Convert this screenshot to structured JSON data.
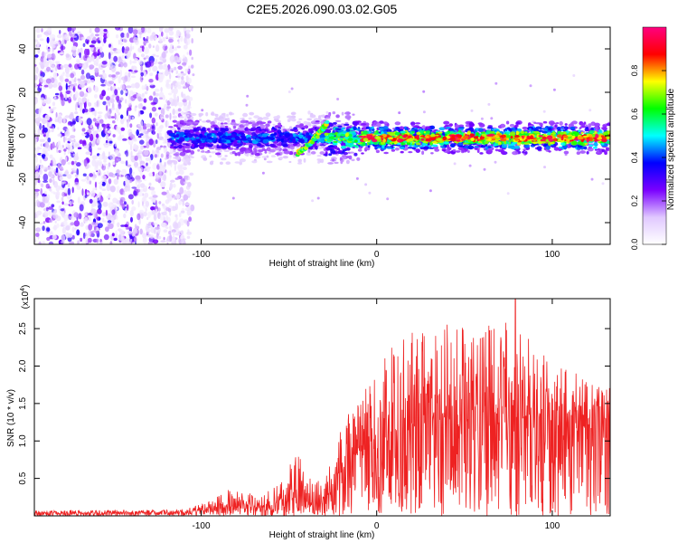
{
  "figure_title": "C2E5.2026.090.03.02.G05",
  "chart_data": [
    {
      "type": "heatmap",
      "title": "C2E5.2026.090.03.02.G05",
      "xlabel": "Height of straight line (km)",
      "ylabel": "Frequency (Hz)",
      "xlim": [
        -195,
        133
      ],
      "ylim": [
        -50,
        50
      ],
      "x_ticks": [
        -100,
        0,
        100
      ],
      "x_tick_labels": [
        "-100",
        "0",
        "100"
      ],
      "y_ticks": [
        -40,
        -20,
        0,
        20,
        40
      ],
      "y_tick_labels": [
        "-40",
        "-20",
        "0",
        "20",
        "40"
      ],
      "colorbar": {
        "label": "Normalized spectral amplitude",
        "range": [
          0,
          1
        ],
        "ticks": [
          0.0,
          0.2,
          0.4,
          0.6,
          0.8
        ],
        "tick_labels": [
          "0.0",
          "0.2",
          "0.4",
          "0.6",
          "0.8"
        ],
        "colors": [
          "#ffffff",
          "#e0c8ff",
          "#7a00ff",
          "#0000ff",
          "#00ffff",
          "#00ff00",
          "#ffff00",
          "#ff0000",
          "#ff0080"
        ]
      },
      "noise_region_x": [
        -195,
        -113
      ],
      "signal_band_x": [
        -118,
        133
      ],
      "signal_center_hz": -1,
      "high_amplitude_segments": [
        {
          "x_start": -10,
          "x_end": 133,
          "amplitude": 0.95
        },
        {
          "x_start": -30,
          "x_end": -10,
          "amplitude": 0.7
        },
        {
          "x_start": -118,
          "x_end": -30,
          "amplitude": 0.45
        }
      ],
      "drift_feature": {
        "x": [
          -45,
          -38,
          -32,
          -28
        ],
        "y": [
          -8,
          -4,
          2,
          6
        ]
      }
    },
    {
      "type": "line",
      "xlabel": "Height of straight line (km)",
      "ylabel": "SNR (10 * v/v)",
      "y_multiplier": "(x10^4)",
      "y_multiplier_base": "(x10",
      "y_multiplier_exp": "4",
      "y_multiplier_close": ")",
      "xlim": [
        -195,
        133
      ],
      "ylim": [
        0,
        2.9
      ],
      "x_ticks": [
        -100,
        0,
        100
      ],
      "x_tick_labels": [
        "-100",
        "0",
        "100"
      ],
      "y_ticks": [
        0.5,
        1.0,
        1.5,
        2.0,
        2.5
      ],
      "y_tick_labels": [
        "0.5",
        "1.0",
        "1.5",
        "2.0",
        "2.5"
      ],
      "color": "#ee2222",
      "envelope": {
        "x": [
          -195,
          -110,
          -95,
          -85,
          -70,
          -60,
          -55,
          -50,
          -45,
          -40,
          -35,
          -30,
          -25,
          -20,
          -10,
          0,
          10,
          20,
          30,
          40,
          50,
          60,
          70,
          80,
          90,
          100,
          110,
          120,
          133
        ],
        "mean": [
          0.04,
          0.04,
          0.08,
          0.12,
          0.15,
          0.13,
          0.2,
          0.3,
          0.4,
          0.25,
          0.15,
          0.2,
          0.35,
          0.6,
          0.85,
          0.95,
          1.1,
          1.2,
          1.25,
          1.25,
          1.2,
          1.3,
          1.35,
          1.3,
          1.3,
          1.35,
          1.35,
          1.3,
          1.3
        ],
        "peak": [
          0.07,
          0.08,
          0.2,
          0.35,
          0.3,
          0.35,
          0.5,
          0.75,
          0.85,
          0.55,
          0.45,
          0.5,
          0.8,
          1.2,
          1.6,
          2.0,
          2.4,
          2.5,
          2.45,
          2.6,
          2.55,
          2.6,
          2.5,
          2.9,
          2.2,
          2.1,
          2.0,
          1.8,
          1.75
        ]
      },
      "peak_point": {
        "x": 79,
        "y": 2.9
      }
    }
  ]
}
